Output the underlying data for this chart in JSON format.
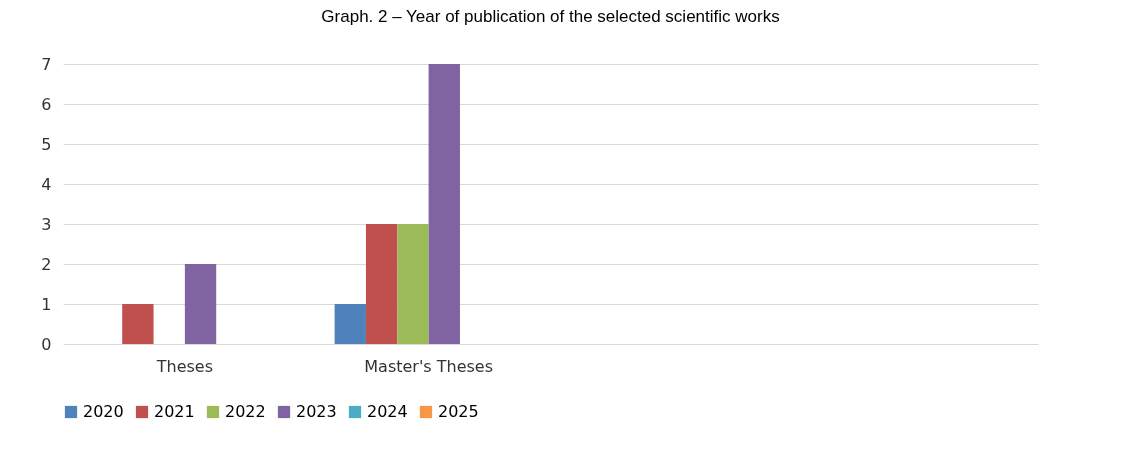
{
  "chart_data": {
    "type": "bar",
    "title": "Graph. 2 – Year of publication of the selected scientific works",
    "categories": [
      "Theses",
      "Master's Theses",
      null,
      null
    ],
    "series": [
      {
        "name": "2020",
        "color": "#4f81bd",
        "values": [
          0,
          1,
          null,
          null
        ]
      },
      {
        "name": "2021",
        "color": "#c0504d",
        "values": [
          1,
          3,
          null,
          null
        ]
      },
      {
        "name": "2022",
        "color": "#9bbb59",
        "values": [
          0,
          3,
          null,
          null
        ]
      },
      {
        "name": "2023",
        "color": "#8064a2",
        "values": [
          2,
          7,
          null,
          null
        ]
      },
      {
        "name": "2024",
        "color": "#4bacc6",
        "values": [
          0,
          0,
          null,
          null
        ]
      },
      {
        "name": "2025",
        "color": "#f79646",
        "values": [
          0,
          0,
          null,
          null
        ]
      }
    ],
    "ylim": [
      0,
      7
    ],
    "yticks": [
      0,
      1,
      2,
      3,
      4,
      5,
      6,
      7
    ],
    "grid": "y",
    "legend": "bottom"
  }
}
